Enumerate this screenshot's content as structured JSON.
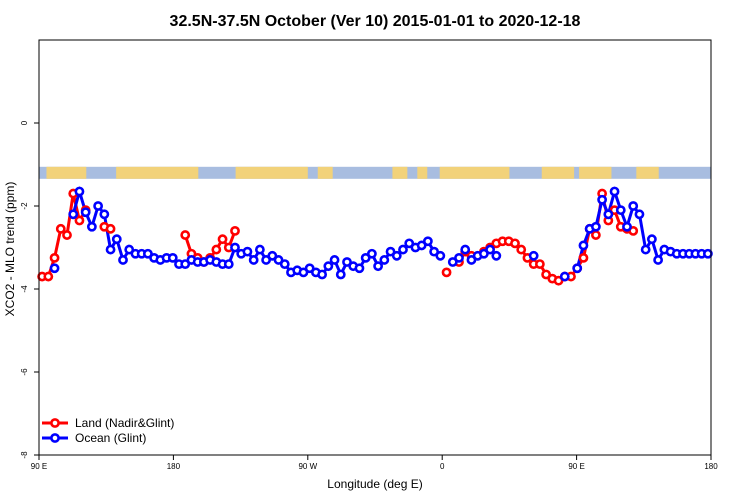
{
  "chart_data": {
    "type": "line",
    "title": "32.5N-37.5N October (Ver 10)   2015-01-01 to 2020-12-18",
    "xlabel": "Longitude (deg E)",
    "ylabel": "XCO2 - MLO trend (ppm)",
    "xlim": [
      -90,
      180
    ],
    "ylim": [
      -8,
      2
    ],
    "x_ticks": [
      {
        "value": -90,
        "label": "90 E"
      },
      {
        "value": -36,
        "label": "180"
      },
      {
        "value": 18,
        "label": "90 W"
      },
      {
        "value": 72,
        "label": "0"
      },
      {
        "value": 126,
        "label": "90 E"
      },
      {
        "value": 180,
        "label": "180"
      }
    ],
    "y_ticks": [
      {
        "value": 0,
        "label": "0"
      },
      {
        "value": -2,
        "label": "-2"
      },
      {
        "value": -4,
        "label": "-4"
      },
      {
        "value": -6,
        "label": "-6"
      },
      {
        "value": -8,
        "label": "-8"
      }
    ],
    "grid": false,
    "legend_position": "bottom-left",
    "land_mask_band": {
      "y_center": -1.2,
      "land_color": "#f2d27a",
      "ocean_color": "#a8bde0"
    },
    "series": [
      {
        "name": "Land (Nadir&Glint)",
        "color": "#ff0000",
        "x": [
          -88.75,
          -86.25,
          -83.75,
          -81.25,
          -78.75,
          -76.25,
          -73.75,
          -71.25,
          -63.75,
          -61.25,
          -31.25,
          -28.75,
          -26.25,
          -23.75,
          -21.25,
          -18.75,
          -16.25,
          -13.75,
          -11.25,
          73.75,
          78.75,
          81.25,
          83.75,
          88.75,
          91.25,
          93.75,
          96.25,
          98.75,
          101.25,
          103.75,
          106.25,
          108.75,
          111.25,
          113.75,
          116.25,
          118.75,
          121.25,
          123.75,
          126.25,
          128.75,
          131.25,
          133.75,
          136.25,
          138.75,
          141.25,
          143.75,
          146.25,
          148.75
        ],
        "y": [
          -3.7,
          -3.7,
          -3.25,
          -2.55,
          -2.7,
          -1.7,
          -2.35,
          -2.1,
          -2.5,
          -2.55,
          -2.7,
          -3.15,
          -3.25,
          -3.35,
          -3.25,
          -3.05,
          -2.8,
          -3.0,
          -2.6,
          -3.6,
          -3.35,
          -3.1,
          -3.2,
          -3.1,
          -3.0,
          -2.9,
          -2.85,
          -2.85,
          -2.9,
          -3.05,
          -3.25,
          -3.4,
          -3.4,
          -3.65,
          -3.75,
          -3.8,
          -3.7,
          -3.7,
          -3.5,
          -3.25,
          -2.55,
          -2.7,
          -1.7,
          -2.35,
          -2.1,
          -2.5,
          -2.55,
          -2.6
        ]
      },
      {
        "name": "Ocean (Glint)",
        "color": "#0000ff",
        "x": [
          -83.75,
          -76.25,
          -73.75,
          -71.25,
          -68.75,
          -66.25,
          -63.75,
          -61.25,
          -58.75,
          -56.25,
          -53.75,
          -51.25,
          -48.75,
          -46.25,
          -43.75,
          -41.25,
          -38.75,
          -36.25,
          -33.75,
          -31.25,
          -28.75,
          -26.25,
          -23.75,
          -21.25,
          -18.75,
          -16.25,
          -13.75,
          -11.25,
          -8.75,
          -6.25,
          -3.75,
          -1.25,
          1.25,
          3.75,
          6.25,
          8.75,
          11.25,
          13.75,
          16.25,
          18.75,
          21.25,
          23.75,
          26.25,
          28.75,
          31.25,
          33.75,
          36.25,
          38.75,
          41.25,
          43.75,
          46.25,
          48.75,
          51.25,
          53.75,
          56.25,
          58.75,
          61.25,
          63.75,
          66.25,
          68.75,
          71.25,
          76.25,
          78.75,
          81.25,
          83.75,
          86.25,
          88.75,
          91.25,
          93.75,
          108.75,
          121.25,
          126.25,
          128.75,
          131.25,
          133.75,
          136.25,
          138.75,
          141.25,
          143.75,
          146.25,
          148.75,
          151.25,
          153.75,
          156.25,
          158.75,
          161.25,
          163.75,
          166.25,
          168.75,
          171.25,
          173.75,
          176.25,
          178.75
        ],
        "y": [
          -3.5,
          -2.2,
          -1.65,
          -2.15,
          -2.5,
          -2.0,
          -2.2,
          -3.05,
          -2.8,
          -3.3,
          -3.05,
          -3.15,
          -3.15,
          -3.15,
          -3.25,
          -3.3,
          -3.25,
          -3.25,
          -3.4,
          -3.4,
          -3.3,
          -3.35,
          -3.35,
          -3.3,
          -3.35,
          -3.4,
          -3.4,
          -3.0,
          -3.15,
          -3.1,
          -3.3,
          -3.05,
          -3.3,
          -3.2,
          -3.3,
          -3.4,
          -3.6,
          -3.55,
          -3.6,
          -3.5,
          -3.6,
          -3.65,
          -3.45,
          -3.3,
          -3.65,
          -3.35,
          -3.45,
          -3.5,
          -3.25,
          -3.15,
          -3.45,
          -3.3,
          -3.1,
          -3.2,
          -3.05,
          -2.9,
          -3.0,
          -2.95,
          -2.85,
          -3.1,
          -3.2,
          -3.35,
          -3.25,
          -3.05,
          -3.3,
          -3.2,
          -3.15,
          -3.05,
          -3.2,
          -3.2,
          -3.7,
          -3.5,
          -2.95,
          -2.55,
          -2.5,
          -1.85,
          -2.2,
          -1.65,
          -2.1,
          -2.5,
          -2.0,
          -2.2,
          -3.05,
          -2.8,
          -3.3,
          -3.05,
          -3.1,
          -3.15,
          -3.15,
          -3.15,
          -3.15,
          -3.15,
          -3.15
        ]
      }
    ]
  }
}
